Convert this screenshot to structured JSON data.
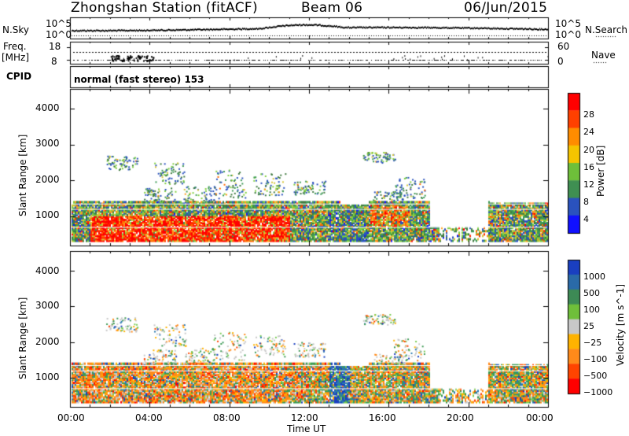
{
  "header": {
    "title": "Zhongshan Station (fitACF)",
    "beam": "Beam 06",
    "date": "06/Jun/2015"
  },
  "top_panels": {
    "nsky_label": "N.Sky",
    "nsky_hi": "10^5",
    "nsky_lo": "10^0",
    "nsearch_label": "N.Search",
    "nsearch_hi": "10^5",
    "nsearch_lo": "10^0",
    "freq_label": "Freq.",
    "freq_unit": "[MHz]",
    "freq_hi": "18",
    "freq_lo": "8",
    "nave_label": "Nave",
    "nave_hi": "60",
    "nave_lo": "0",
    "cpid_label": "CPID",
    "cpid_text": "normal (fast stereo) 153"
  },
  "colors": {
    "power_scale": [
      "#1010ff",
      "#2a52be",
      "#3f7a3f",
      "#3d9a55",
      "#7fcf3f",
      "#d6c43a",
      "#ff9a1a",
      "#ff6a00",
      "#ff2a00",
      "#ff0000"
    ],
    "velocity_scale": [
      "#ff0000",
      "#ff4400",
      "#ff8a1a",
      "#ffb300",
      "#c8c8c8",
      "#7acc55",
      "#3d9a55",
      "#2a7ab0",
      "#1a40c0"
    ]
  },
  "chart_data": [
    {
      "type": "heatmap",
      "name": "power",
      "ylabel": "Slant Range [km]",
      "xlabel": "Time UT",
      "x_ticks": [
        "00:00",
        "04:00",
        "08:00",
        "12:00",
        "16:00",
        "20:00",
        "00:00"
      ],
      "y_ticks": [
        "1000",
        "2000",
        "3000",
        "4000"
      ],
      "xlim_hours": [
        0,
        24
      ],
      "ylim_km": [
        180,
        4550
      ],
      "colorbar_label": "Power [dB]",
      "colorbar_ticks": [
        "4",
        "8",
        "12",
        "16",
        "20",
        "24",
        "28"
      ],
      "colorbar_range": [
        0,
        32
      ]
    },
    {
      "type": "heatmap",
      "name": "velocity",
      "ylabel": "Slant Range [km]",
      "xlabel": "Time UT",
      "x_ticks": [
        "00:00",
        "04:00",
        "08:00",
        "12:00",
        "16:00",
        "20:00",
        "00:00"
      ],
      "y_ticks": [
        "1000",
        "2000",
        "3000",
        "4000"
      ],
      "xlim_hours": [
        0,
        24
      ],
      "ylim_km": [
        180,
        4550
      ],
      "colorbar_label": "Velocity [m s^-1]",
      "colorbar_ticks": [
        "1000",
        "500",
        "100",
        "25",
        "−25",
        "−100",
        "−500",
        "−1000"
      ]
    }
  ]
}
